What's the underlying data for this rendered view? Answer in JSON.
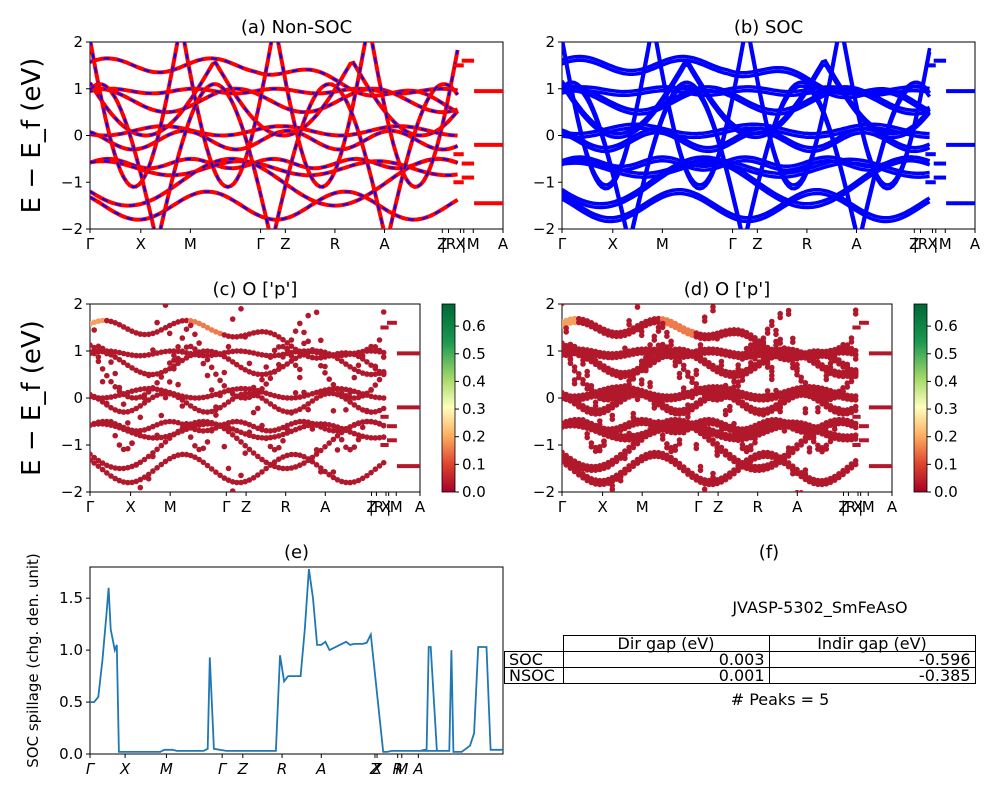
{
  "chart_data": [
    {
      "id": "a",
      "type": "line",
      "title": "(a) Non-SOC",
      "ylabel": "E − E_f (eV)",
      "ylim": [
        -2,
        2
      ],
      "yticks": [
        "−2",
        "−1",
        "0",
        "1",
        "2"
      ],
      "kpoints": [
        "Γ",
        "X",
        "M",
        "Γ",
        "Z",
        "R",
        "A",
        "Z",
        "|R",
        "X",
        "|",
        "M",
        "A"
      ],
      "colors": {
        "line": "#ff0000",
        "dash": "#0000ff"
      }
    },
    {
      "id": "b",
      "type": "line",
      "title": "(b) SOC",
      "ylim": [
        -2,
        2
      ],
      "yticks": [
        "−2",
        "−1",
        "0",
        "1",
        "2"
      ],
      "kpoints": [
        "Γ",
        "X",
        "M",
        "Γ",
        "Z",
        "R",
        "A",
        "Z",
        "|R",
        "X",
        "|",
        "M",
        "A"
      ],
      "colors": {
        "line": "#0000ff"
      }
    },
    {
      "id": "c",
      "type": "scatter",
      "title": "(c)  O ['p']",
      "ylabel": "E − E_f (eV)",
      "ylim": [
        -2,
        2
      ],
      "yticks": [
        "−2",
        "−1",
        "0",
        "1",
        "2"
      ],
      "kpoints": [
        "Γ",
        "X",
        "M",
        "Γ",
        "Z",
        "R",
        "A",
        "Z",
        "|R",
        "X",
        "|",
        "M",
        "A"
      ],
      "colorbar": {
        "ticks": [
          "0.0",
          "0.1",
          "0.2",
          "0.3",
          "0.4",
          "0.5",
          "0.6"
        ],
        "range": [
          0,
          0.68
        ]
      }
    },
    {
      "id": "d",
      "type": "scatter",
      "title": "(d) O ['p']",
      "ylim": [
        -2,
        2
      ],
      "yticks": [
        "−2",
        "−1",
        "0",
        "1",
        "2"
      ],
      "kpoints": [
        "Γ",
        "X",
        "M",
        "Γ",
        "Z",
        "R",
        "A",
        "Z",
        "|R",
        "X",
        "|",
        "M",
        "A"
      ],
      "colorbar": {
        "ticks": [
          "0.0",
          "0.1",
          "0.2",
          "0.3",
          "0.4",
          "0.5",
          "0.6"
        ],
        "range": [
          0,
          0.68
        ]
      }
    },
    {
      "id": "e",
      "type": "line",
      "title": "(e)",
      "ylabel": "SOC spillage (chg. den. unit)",
      "ylim": [
        0,
        1.8
      ],
      "yticks": [
        "0.0",
        "0.5",
        "1.0",
        "1.5"
      ],
      "xticks": [
        "Γ",
        "X",
        "M",
        "Γ",
        "Z",
        "R",
        "A",
        "Z",
        "X",
        "R",
        "M",
        "A"
      ],
      "x": [
        0,
        0.01,
        0.02,
        0.03,
        0.04,
        0.045,
        0.05,
        0.06,
        0.065,
        0.07,
        0.08,
        0.15,
        0.17,
        0.18,
        0.19,
        0.2,
        0.21,
        0.22,
        0.23,
        0.275,
        0.28,
        0.285,
        0.29,
        0.3,
        0.33,
        0.34,
        0.345,
        0.35,
        0.36,
        0.365,
        0.39,
        0.45,
        0.46,
        0.47,
        0.48,
        0.5,
        0.51,
        0.52,
        0.53,
        0.54,
        0.55,
        0.56,
        0.57,
        0.58,
        0.62,
        0.63,
        0.64,
        0.65,
        0.66,
        0.67,
        0.68,
        0.71,
        0.72,
        0.73,
        0.8,
        0.81,
        0.815,
        0.82,
        0.825,
        0.84,
        0.8,
        0.85,
        0.87,
        0.875,
        0.88,
        0.885,
        0.89,
        0.9,
        0.91,
        0.92,
        0.93,
        0.94,
        0.95,
        0.96,
        0.97,
        1.0
      ],
      "values": [
        0.5,
        0.5,
        0.55,
        0.9,
        1.35,
        1.6,
        1.2,
        1.0,
        1.05,
        0.02,
        0.02,
        0.02,
        0.02,
        0.04,
        0.04,
        0.04,
        0.03,
        0.03,
        0.03,
        0.03,
        0.04,
        0.05,
        0.93,
        0.05,
        0.03,
        0.03,
        0.03,
        0.03,
        0.03,
        0.03,
        0.03,
        0.03,
        0.95,
        0.7,
        0.75,
        0.75,
        0.75,
        1.2,
        1.78,
        1.5,
        1.05,
        1.05,
        1.08,
        1.0,
        1.08,
        1.05,
        1.06,
        1.06,
        1.06,
        1.07,
        1.15,
        0.02,
        0.02,
        0.03,
        0.03,
        0.04,
        0.04,
        1.03,
        1.03,
        0.03,
        0.03,
        0.03,
        0.03,
        1.0,
        0.02,
        0.02,
        0.02,
        0.02,
        0.05,
        0.08,
        0.2,
        1.03,
        1.03,
        1.03,
        0.04,
        0.04
      ],
      "colors": {
        "line": "#1f77b4"
      }
    }
  ],
  "panel_f": {
    "label": "(f)",
    "title": "JVASP-5302_SmFeAsO",
    "headers": [
      "Dir gap (eV)",
      "Indir gap (eV)"
    ],
    "rows": [
      {
        "label": "SOC",
        "dir": "0.003",
        "indir": "-0.596"
      },
      {
        "label": "NSOC",
        "dir": "0.001",
        "indir": "-0.385"
      }
    ],
    "peaks": "# Peaks = 5"
  }
}
